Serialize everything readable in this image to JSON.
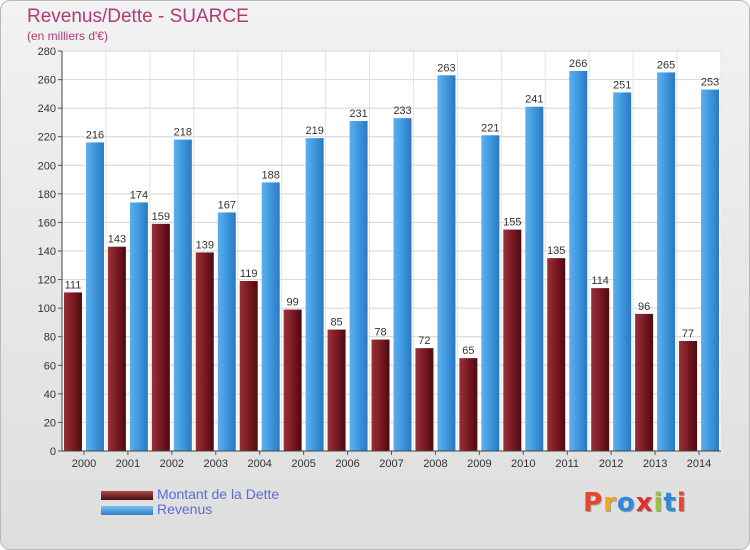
{
  "header": {
    "title": "Revenus/Dette - SUARCE",
    "subtitle": "(en milliers d'€)"
  },
  "legend": {
    "items": [
      {
        "label": "Montant de la Dette",
        "color": "#7a1a22"
      },
      {
        "label": "Revenus",
        "color": "#3f97de"
      }
    ]
  },
  "brand": {
    "letters": [
      "P",
      "r",
      "o",
      "x",
      "i",
      "t",
      "i"
    ],
    "colors": [
      "#e8452c",
      "#f0a71d",
      "#2e8ad7",
      "#e0302b",
      "#9ac23c",
      "#2e8ad7",
      "#e8452c"
    ]
  },
  "chart_data": {
    "type": "bar",
    "categories": [
      "2000",
      "2001",
      "2002",
      "2003",
      "2004",
      "2005",
      "2006",
      "2007",
      "2008",
      "2009",
      "2010",
      "2011",
      "2012",
      "2013",
      "2014"
    ],
    "series": [
      {
        "name": "Montant de la Dette",
        "color": "#7a1a22",
        "values": [
          111,
          143,
          159,
          139,
          119,
          99,
          85,
          78,
          72,
          65,
          155,
          135,
          114,
          96,
          77
        ]
      },
      {
        "name": "Revenus",
        "color": "#3f97de",
        "values": [
          216,
          174,
          218,
          167,
          188,
          219,
          231,
          233,
          263,
          221,
          241,
          266,
          251,
          265,
          253
        ]
      }
    ],
    "ylim": [
      0,
      280
    ],
    "yticks": [
      0,
      20,
      40,
      60,
      80,
      100,
      120,
      140,
      160,
      180,
      200,
      220,
      240,
      260,
      280
    ],
    "grid": true,
    "legend_position": "bottom-left"
  }
}
